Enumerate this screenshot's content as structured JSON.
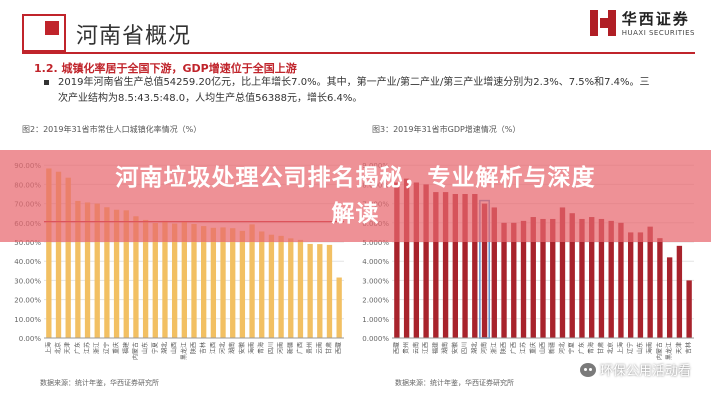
{
  "header": {
    "title": "河南省概况",
    "brand_cn": "华西证券",
    "brand_en": "HUAXI SECURITIES"
  },
  "section": {
    "heading": "1.2. 城镇化率居于全国下游，GDP增速位于全国上游",
    "bullet": "2019年河南省生产总值54259.20亿元，比上年增长7.0%。其中，第一产业/第二产业/第三产业增速分别为2.3%、7.5%和7.4%。三次产业结构为8.5:43.5:48.0，人均生产总值56388元，增长6.4%。"
  },
  "overlay": {
    "title_line1": "河南垃圾处理公司排名揭秘，专业解析与深度",
    "title_line2": "解读"
  },
  "watermark": {
    "text": "环保公用活动看"
  },
  "colors": {
    "accent": "#c0242b",
    "bar_left": "#f2c063",
    "bar_right": "#a8232c",
    "overlay": "#e8676e"
  },
  "chart_data": [
    {
      "type": "bar",
      "caption": "图2：2019年31省市常住人口城镇化率情况（%）",
      "source": "数据来源：统计年鉴，华西证券研究所",
      "ylim": [
        0,
        100
      ],
      "ytick_labels": [
        "0.00%",
        "10.00%",
        "20.00%",
        "30.00%",
        "40.00%",
        "50.00%",
        "60.00%",
        "70.00%",
        "80.00%",
        "90.00%"
      ],
      "ytick_values": [
        0,
        10,
        20,
        30,
        40,
        50,
        60,
        70,
        80,
        90
      ],
      "reference_line": 60.6,
      "categories": [
        "上海",
        "北京",
        "天津",
        "广东",
        "江苏",
        "浙江",
        "辽宁",
        "重庆",
        "福建",
        "内蒙古",
        "山东",
        "宁夏",
        "湖北",
        "山西",
        "黑龙江",
        "陕西",
        "吉林",
        "江西",
        "河北",
        "湖南",
        "安徽",
        "海南",
        "青海",
        "四川",
        "河南",
        "新疆",
        "广西",
        "贵州",
        "云南",
        "甘肃",
        "西藏"
      ],
      "values": [
        88.3,
        86.6,
        83.5,
        71.4,
        70.6,
        70.0,
        68.1,
        66.8,
        66.5,
        63.4,
        61.5,
        59.9,
        61.0,
        59.6,
        60.9,
        59.4,
        58.3,
        57.4,
        57.6,
        57.2,
        55.8,
        59.2,
        55.5,
        53.8,
        53.2,
        51.9,
        51.1,
        49.0,
        48.9,
        48.5,
        31.5
      ],
      "grid": true,
      "legend": "none"
    },
    {
      "type": "bar",
      "caption": "图3：2019年31省市GDP增速情况（%）",
      "source": "数据来源：统计年鉴，华西证券研究所",
      "ylim": [
        0,
        10
      ],
      "ytick_labels": [
        "0.000%",
        "1.000%",
        "2.000%",
        "3.000%",
        "4.000%",
        "5.000%",
        "6.000%",
        "7.000%",
        "8.000%",
        "9.000%"
      ],
      "ytick_values": [
        0,
        1,
        2,
        3,
        4,
        5,
        6,
        7,
        8,
        9
      ],
      "categories": [
        "西藏",
        "贵州",
        "云南",
        "江西",
        "福建",
        "湖南",
        "安徽",
        "四川",
        "湖北",
        "河南",
        "浙江",
        "陕西",
        "广西",
        "江苏",
        "重庆",
        "山西",
        "新疆",
        "河北",
        "宁夏",
        "广东",
        "青海",
        "甘肃",
        "北京",
        "上海",
        "辽宁",
        "山东",
        "海南",
        "内蒙古",
        "黑龙江",
        "天津",
        "吉林"
      ],
      "values": [
        8.1,
        8.3,
        8.1,
        8.0,
        7.6,
        7.6,
        7.5,
        7.5,
        7.5,
        7.0,
        6.8,
        6.0,
        6.0,
        6.1,
        6.3,
        6.2,
        6.2,
        6.8,
        6.5,
        6.2,
        6.3,
        6.2,
        6.1,
        6.0,
        5.5,
        5.5,
        5.8,
        5.2,
        4.2,
        4.8,
        3.0
      ],
      "highlight_category": "河南",
      "grid": true,
      "legend": "none"
    }
  ]
}
